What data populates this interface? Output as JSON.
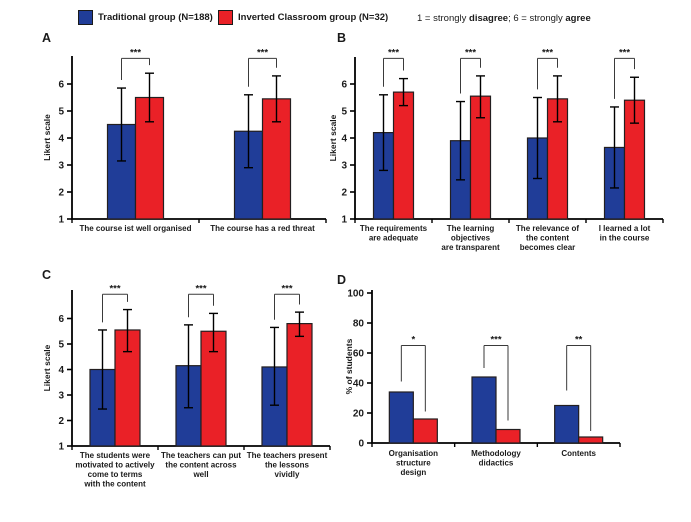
{
  "legend": {
    "items": [
      {
        "id": "traditional",
        "label": "Traditional group (N=188)",
        "color": "#203D98"
      },
      {
        "id": "inverted",
        "label": "Inverted Classroom group (N=32)",
        "color": "#EA2127"
      }
    ]
  },
  "scale_note": {
    "part1": "1 = strongly ",
    "bold1": "disagree",
    "part2": "; 6 = strongly ",
    "bold2": "agree"
  },
  "colors": {
    "traditional": "#203D98",
    "inverted": "#EA2127",
    "bar_outline": "#231F20",
    "axis": "#000000",
    "bracket": "#3a3a3a"
  },
  "chart_data": [
    {
      "panel": "A",
      "type": "bar",
      "ylabel": "Likert scale",
      "ylim": [
        1,
        7
      ],
      "yticks": [
        1,
        2,
        3,
        4,
        5,
        6
      ],
      "error_bars": true,
      "series": [
        "Traditional group (N=188)",
        "Inverted Classroom group (N=32)"
      ],
      "groups": [
        {
          "label": [
            "The course ist well organised"
          ],
          "traditional": {
            "value": 4.5,
            "err_low": 3.15,
            "err_high": 5.85
          },
          "inverted": {
            "value": 5.5,
            "err_low": 4.6,
            "err_high": 6.4
          },
          "sig": "***"
        },
        {
          "label": [
            "The course has a red threat"
          ],
          "traditional": {
            "value": 4.25,
            "err_low": 2.9,
            "err_high": 5.6
          },
          "inverted": {
            "value": 5.45,
            "err_low": 4.6,
            "err_high": 6.3
          },
          "sig": "***"
        }
      ]
    },
    {
      "panel": "B",
      "type": "bar",
      "ylabel": "Likert scale",
      "ylim": [
        1,
        7
      ],
      "yticks": [
        1,
        2,
        3,
        4,
        5,
        6
      ],
      "error_bars": true,
      "series": [
        "Traditional group (N=188)",
        "Inverted Classroom group (N=32)"
      ],
      "groups": [
        {
          "label": [
            "The requirements",
            "are adequate"
          ],
          "traditional": {
            "value": 4.2,
            "err_low": 2.8,
            "err_high": 5.6
          },
          "inverted": {
            "value": 5.7,
            "err_low": 5.2,
            "err_high": 6.2
          },
          "sig": "***"
        },
        {
          "label": [
            "The learning",
            "objectives",
            "are transparent"
          ],
          "traditional": {
            "value": 3.9,
            "err_low": 2.45,
            "err_high": 5.35
          },
          "inverted": {
            "value": 5.55,
            "err_low": 4.75,
            "err_high": 6.3
          },
          "sig": "***"
        },
        {
          "label": [
            "The relevance of",
            "the content",
            "becomes clear"
          ],
          "traditional": {
            "value": 4.0,
            "err_low": 2.5,
            "err_high": 5.5
          },
          "inverted": {
            "value": 5.45,
            "err_low": 4.6,
            "err_high": 6.3
          },
          "sig": "***"
        },
        {
          "label": [
            "I learned a lot",
            "in the course"
          ],
          "traditional": {
            "value": 3.65,
            "err_low": 2.15,
            "err_high": 5.15
          },
          "inverted": {
            "value": 5.4,
            "err_low": 4.55,
            "err_high": 6.25
          },
          "sig": "***"
        }
      ]
    },
    {
      "panel": "C",
      "type": "bar",
      "ylabel": "Likert scale",
      "ylim": [
        1,
        7
      ],
      "yticks": [
        1,
        2,
        3,
        4,
        5,
        6
      ],
      "error_bars": true,
      "series": [
        "Traditional group (N=188)",
        "Inverted Classroom group (N=32)"
      ],
      "groups": [
        {
          "label": [
            "The students were",
            "motivated to actively",
            "come to terms",
            "with the content"
          ],
          "traditional": {
            "value": 4.0,
            "err_low": 2.45,
            "err_high": 5.55
          },
          "inverted": {
            "value": 5.55,
            "err_low": 4.7,
            "err_high": 6.35
          },
          "sig": "***"
        },
        {
          "label": [
            "The teachers can put",
            "the content across",
            "well"
          ],
          "traditional": {
            "value": 4.15,
            "err_low": 2.5,
            "err_high": 5.75
          },
          "inverted": {
            "value": 5.5,
            "err_low": 4.7,
            "err_high": 6.2
          },
          "sig": "***"
        },
        {
          "label": [
            "The teachers present",
            "the lessons",
            "vividly"
          ],
          "traditional": {
            "value": 4.1,
            "err_low": 2.6,
            "err_high": 5.65
          },
          "inverted": {
            "value": 5.8,
            "err_low": 5.3,
            "err_high": 6.25
          },
          "sig": "***"
        }
      ]
    },
    {
      "panel": "D",
      "type": "bar",
      "ylabel": "% of students",
      "ylim": [
        0,
        100
      ],
      "yticks": [
        0,
        20,
        40,
        60,
        80,
        100
      ],
      "error_bars": false,
      "series": [
        "Traditional group (N=188)",
        "Inverted Classroom group (N=32)"
      ],
      "groups": [
        {
          "label": [
            "Organisation",
            "structure",
            "design"
          ],
          "traditional": {
            "value": 34
          },
          "inverted": {
            "value": 16
          },
          "sig": "*",
          "bracket": {
            "top": 65,
            "leg_traditional": 41,
            "leg_inverted": 21
          }
        },
        {
          "label": [
            "Methodology",
            "didactics"
          ],
          "traditional": {
            "value": 44
          },
          "inverted": {
            "value": 9
          },
          "sig": "***",
          "bracket": {
            "top": 65,
            "leg_traditional": 50,
            "leg_inverted": 15
          }
        },
        {
          "label": [
            "Contents"
          ],
          "traditional": {
            "value": 25
          },
          "inverted": {
            "value": 4
          },
          "sig": "**",
          "bracket": {
            "top": 65,
            "leg_traditional": 35,
            "leg_inverted": 8
          }
        }
      ]
    }
  ]
}
